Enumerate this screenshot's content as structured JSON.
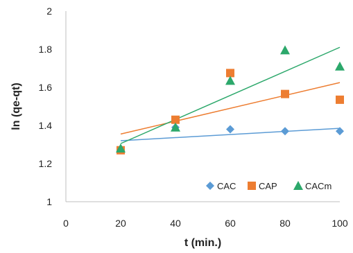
{
  "chart_data": {
    "type": "scatter",
    "xlabel": "t (min.)",
    "ylabel": "ln (qe-qt)",
    "xlim": [
      0,
      100
    ],
    "ylim": [
      1,
      2
    ],
    "xticks": [
      0,
      20,
      40,
      60,
      80,
      100
    ],
    "yticks": [
      1,
      1.2,
      1.4,
      1.6,
      1.8,
      2
    ],
    "ytick_labels": [
      "1",
      "1.2",
      "1.4",
      "1.6",
      "1.8",
      "2"
    ],
    "grid": false,
    "legend_position": "bottom-right",
    "series": [
      {
        "name": "CAC",
        "marker": "diamond",
        "color": "#5b9bd5",
        "x": [
          20,
          40,
          60,
          80,
          100
        ],
        "y": [
          1.27,
          1.39,
          1.38,
          1.37,
          1.37
        ],
        "trendline": [
          [
            20,
            1.32
          ],
          [
            100,
            1.385
          ]
        ]
      },
      {
        "name": "CAP",
        "marker": "square",
        "color": "#ed7d31",
        "x": [
          20,
          40,
          60,
          80,
          100
        ],
        "y": [
          1.27,
          1.43,
          1.675,
          1.565,
          1.535
        ],
        "trendline": [
          [
            20,
            1.355
          ],
          [
            100,
            1.625
          ]
        ]
      },
      {
        "name": "CACm",
        "marker": "triangle",
        "color": "#2ca86b",
        "x": [
          20,
          40,
          60,
          80,
          100
        ],
        "y": [
          1.28,
          1.39,
          1.635,
          1.795,
          1.71
        ],
        "trendline": [
          [
            20,
            1.305
          ],
          [
            100,
            1.81
          ]
        ]
      }
    ]
  }
}
